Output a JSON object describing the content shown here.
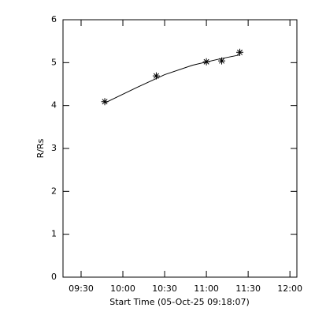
{
  "chart_data": {
    "type": "scatter",
    "x_label": "Start Time (05-Oct-25 09:18:07)",
    "y_label": "R/Rs",
    "series": [
      {
        "marker": "asterisk",
        "color": "#000000",
        "x": [
          "09:47",
          "10:24",
          "11:00",
          "11:11",
          "11:24"
        ],
        "values": [
          4.09,
          4.69,
          5.02,
          5.04,
          5.24
        ]
      },
      {
        "marker": "line",
        "color": "#000000",
        "x": [
          "09:47",
          "10:10",
          "10:30",
          "10:50",
          "11:10",
          "11:24"
        ],
        "values": [
          4.06,
          4.42,
          4.72,
          4.94,
          5.09,
          5.18
        ]
      }
    ],
    "xlim": [
      "09:17",
      "12:05"
    ],
    "xticks": [
      "09:30",
      "10:00",
      "10:30",
      "11:00",
      "11:30",
      "12:00"
    ],
    "ylim": [
      0,
      6
    ],
    "yticks": [
      0,
      1,
      2,
      3,
      4,
      5,
      6
    ]
  }
}
